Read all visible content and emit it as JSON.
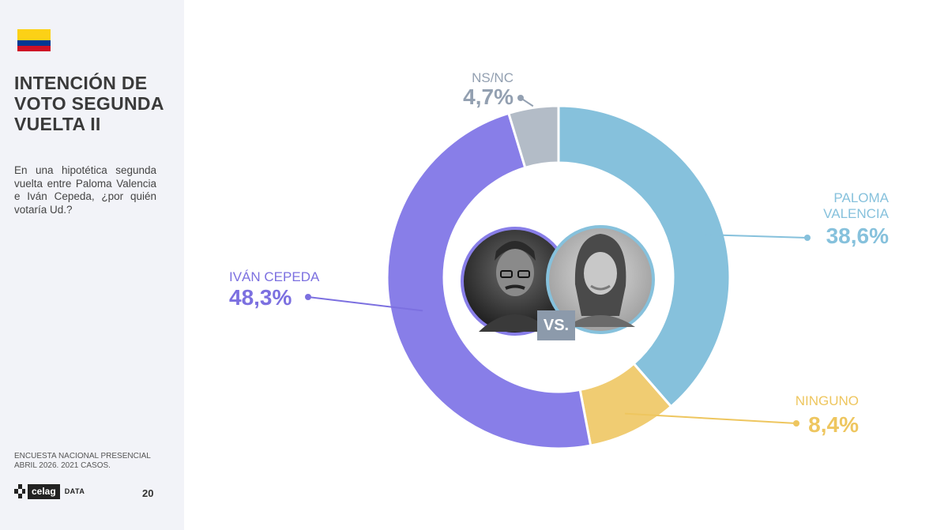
{
  "sidebar": {
    "flag_colors": [
      "#fcd116",
      "#003893",
      "#ce1126"
    ],
    "title_lines": [
      "INTENCIÓN DE",
      "VOTO SEGUNDA",
      "VUELTA II"
    ],
    "question": "En una hipotética segunda vuelta entre Paloma Valencia e Iván Cepeda, ¿por quién votaría Ud.?",
    "source_lines": [
      "ENCUESTA NACIONAL PRESENCIAL",
      "ABRIL 2026. 2021 CASOS."
    ],
    "logo_brand": "celag",
    "logo_suffix": "DATA",
    "page_number": "20"
  },
  "center": {
    "vs_label": "VS."
  },
  "chart_data": {
    "type": "pie",
    "donut": true,
    "series": [
      {
        "name": "PALOMA VALENCIA",
        "label_lines": [
          "PALOMA",
          "VALENCIA"
        ],
        "value": 38.6,
        "value_label": "38,6%",
        "color": "#86c1dc",
        "label_color": "#86c1dc"
      },
      {
        "name": "NINGUNO",
        "label_lines": [
          "NINGUNO"
        ],
        "value": 8.4,
        "value_label": "8,4%",
        "color": "#f0cc72",
        "label_color": "#eec65f"
      },
      {
        "name": "IVÁN CEPEDA",
        "label_lines": [
          "IVÁN CEPEDA"
        ],
        "value": 48.3,
        "value_label": "48,3%",
        "color": "#887ee8",
        "label_color": "#7c70e0"
      },
      {
        "name": "NS/NC",
        "label_lines": [
          "NS/NC"
        ],
        "value": 4.7,
        "value_label": "4,7%",
        "color": "#b3bcc7",
        "label_color": "#93a0b1"
      }
    ]
  }
}
